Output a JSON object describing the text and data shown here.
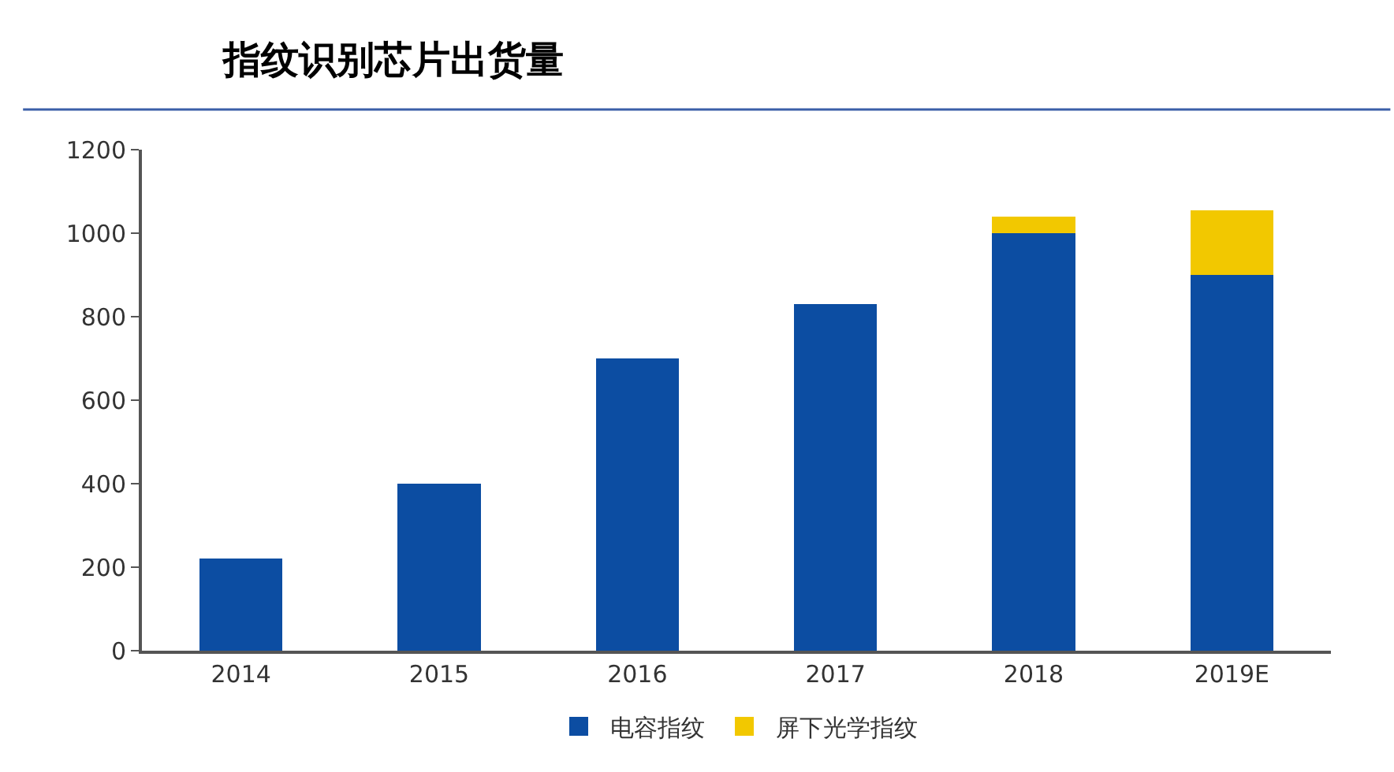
{
  "chart_data": {
    "type": "bar",
    "title": "指纹识别芯片出货量",
    "stacked": true,
    "categories": [
      "2014",
      "2015",
      "2016",
      "2017",
      "2018",
      "2019E"
    ],
    "series": [
      {
        "name": "电容指纹",
        "color": "#0c4da2",
        "values": [
          220,
          400,
          700,
          830,
          1000,
          900
        ]
      },
      {
        "name": "屏下光学指纹",
        "color": "#f2c800",
        "values": [
          null,
          null,
          null,
          null,
          40,
          155
        ]
      }
    ],
    "ylim": [
      0,
      1200
    ],
    "yticks": [
      0,
      200,
      400,
      600,
      800,
      1000,
      1200
    ],
    "legend": "bottom"
  }
}
